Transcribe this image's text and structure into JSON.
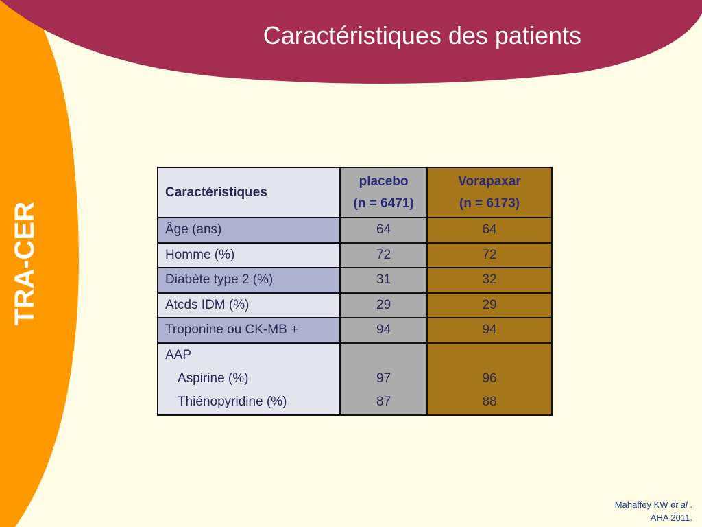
{
  "slide": {
    "title": "Caractéristiques des patients",
    "side_label": "TRA-CER",
    "colors": {
      "banner": "#a62d52",
      "side_band": "#ff9900",
      "background": "#fffde6"
    }
  },
  "table": {
    "headers": {
      "col1": "Caractéristiques",
      "placebo_name": "placebo",
      "placebo_n": "(n = 6471)",
      "vorapaxar_name": "Vorapaxar",
      "vorapaxar_n": "(n = 6173)"
    },
    "rows": [
      {
        "label": "Âge (ans)",
        "placebo": "64",
        "vorapaxar": "64"
      },
      {
        "label": "Homme (%)",
        "placebo": "72",
        "vorapaxar": "72"
      },
      {
        "label": "Diabète type 2 (%)",
        "placebo": "31",
        "vorapaxar": "32"
      },
      {
        "label": "Atcds IDM (%)",
        "placebo": "29",
        "vorapaxar": "29"
      },
      {
        "label": "Troponine ou CK-MB +",
        "placebo": "94",
        "vorapaxar": "94"
      }
    ],
    "aap": {
      "label": "AAP",
      "sub": [
        {
          "label": "Aspirine (%)",
          "placebo": "97",
          "vorapaxar": "96"
        },
        {
          "label": "Thiénopyridine (%)",
          "placebo": "87",
          "vorapaxar": "88"
        }
      ]
    }
  },
  "citation": {
    "author": "Mahaffey KW ",
    "etal": "et al",
    "after": " .",
    "line2": "AHA 2011."
  }
}
